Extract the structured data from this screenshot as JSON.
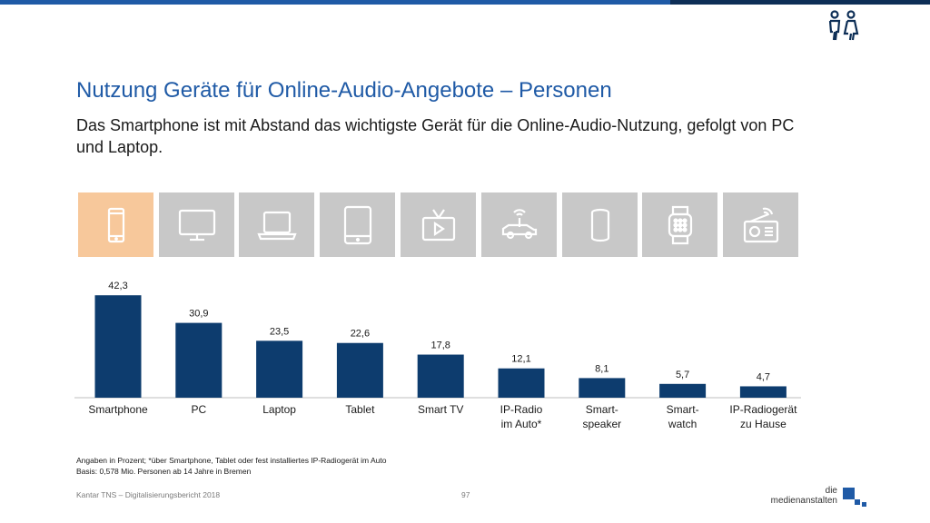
{
  "header": {
    "title": "Nutzung Geräte für Online-Audio-Angebote – Personen",
    "subtitle": "Das Smartphone ist mit Abstand das wichtigste Gerät für die Online-Audio-Nutzung, gefolgt von PC und Laptop."
  },
  "icons": [
    {
      "name": "smartphone-icon",
      "active": true
    },
    {
      "name": "pc-monitor-icon",
      "active": false
    },
    {
      "name": "laptop-icon",
      "active": false
    },
    {
      "name": "tablet-icon",
      "active": false
    },
    {
      "name": "smart-tv-icon",
      "active": false
    },
    {
      "name": "car-radio-icon",
      "active": false
    },
    {
      "name": "smart-speaker-icon",
      "active": false
    },
    {
      "name": "smartwatch-icon",
      "active": false
    },
    {
      "name": "ip-radio-icon",
      "active": false
    }
  ],
  "colors": {
    "bar": "#0d3c6e",
    "tile": "#c8c8c8",
    "tile_active": "#f7c89b",
    "accent": "#1f5aa6"
  },
  "chart_data": {
    "type": "bar",
    "title": "",
    "xlabel": "",
    "ylabel": "",
    "ylim": [
      0,
      45
    ],
    "categories": [
      [
        "Smartphone"
      ],
      [
        "PC"
      ],
      [
        "Laptop"
      ],
      [
        "Tablet"
      ],
      [
        "Smart TV"
      ],
      [
        "IP-Radio",
        "im Auto*"
      ],
      [
        "Smart-",
        "speaker"
      ],
      [
        "Smart-",
        "watch"
      ],
      [
        "IP-Radiogerät",
        "zu Hause"
      ]
    ],
    "values": [
      42.3,
      30.9,
      23.5,
      22.6,
      17.8,
      12.1,
      8.1,
      5.7,
      4.7
    ],
    "value_labels": [
      "42,3",
      "30,9",
      "23,5",
      "22,6",
      "17,8",
      "12,1",
      "8,1",
      "5,7",
      "4,7"
    ]
  },
  "notes": {
    "line1": "Angaben in Prozent; *über Smartphone, Tablet oder fest installiertes IP-Radiogerät im Auto",
    "line2": "Basis: 0,578 Mio. Personen ab 14 Jahre in Bremen"
  },
  "footer": {
    "source": "Kantar TNS – Digitalisierungsbericht 2018",
    "page_number": "97",
    "logo_line1": "die",
    "logo_line2": "medienanstalten"
  }
}
